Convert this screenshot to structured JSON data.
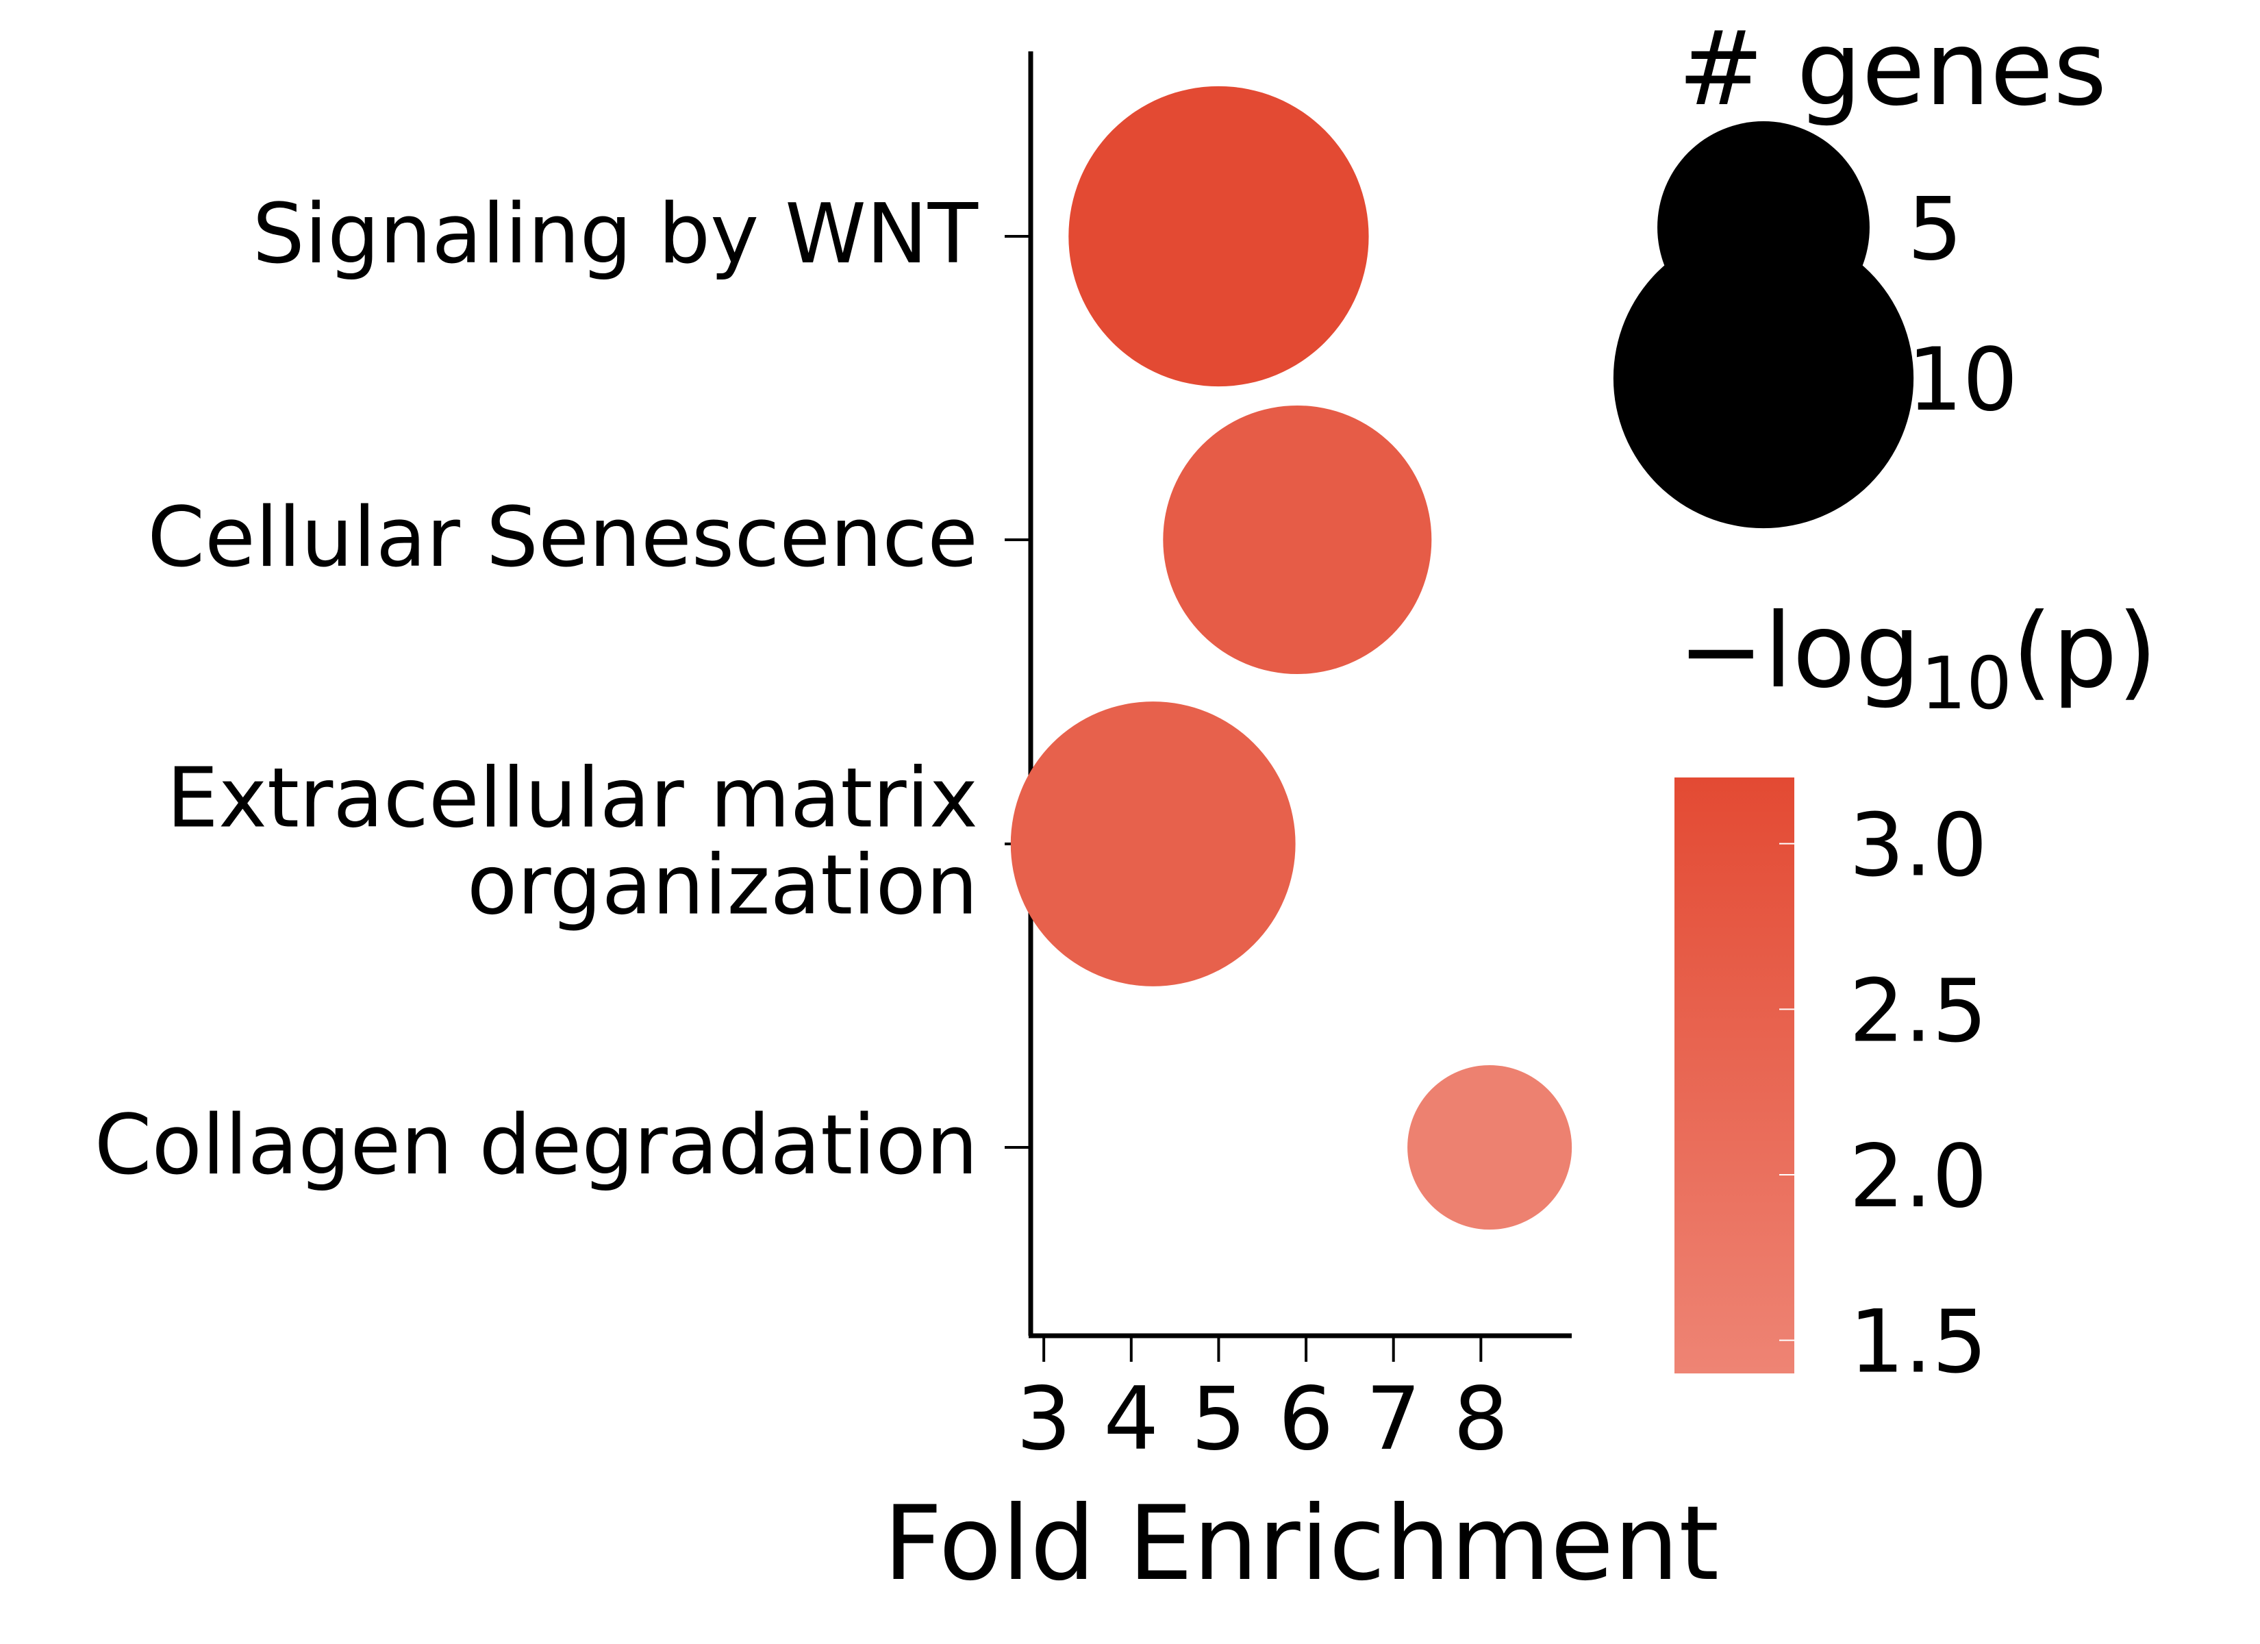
{
  "chart_data": {
    "type": "scatter",
    "xlabel": "Fold Enrichment",
    "xlim": [
      2.85,
      9.0
    ],
    "xticks": [
      3,
      4,
      5,
      6,
      7,
      8
    ],
    "categories": [
      [
        "Signaling by WNT"
      ],
      [
        "Cellular Senescence"
      ],
      [
        "Extracellular matrix",
        "organization"
      ],
      [
        "Collagen degradation"
      ]
    ],
    "points": [
      {
        "category": 0,
        "fold_enrichment": 5.0,
        "genes": 10,
        "neg_log10_p": 3.2
      },
      {
        "category": 1,
        "fold_enrichment": 5.9,
        "genes": 8,
        "neg_log10_p": 2.65
      },
      {
        "category": 2,
        "fold_enrichment": 4.25,
        "genes": 9,
        "neg_log10_p": 2.5
      },
      {
        "category": 3,
        "fold_enrichment": 8.1,
        "genes": 3,
        "neg_log10_p": 1.5
      }
    ],
    "size_legend": {
      "title": "# genes",
      "entries": [
        5,
        10
      ]
    },
    "color_legend": {
      "title_main": "−log",
      "title_sub": "10",
      "title_tail": "(p)",
      "ticks": [
        1.5,
        2.0,
        2.5,
        3.0
      ],
      "range": [
        1.4,
        3.2
      ],
      "color_low": "#EE8474",
      "color_high": "#E34A33"
    }
  }
}
